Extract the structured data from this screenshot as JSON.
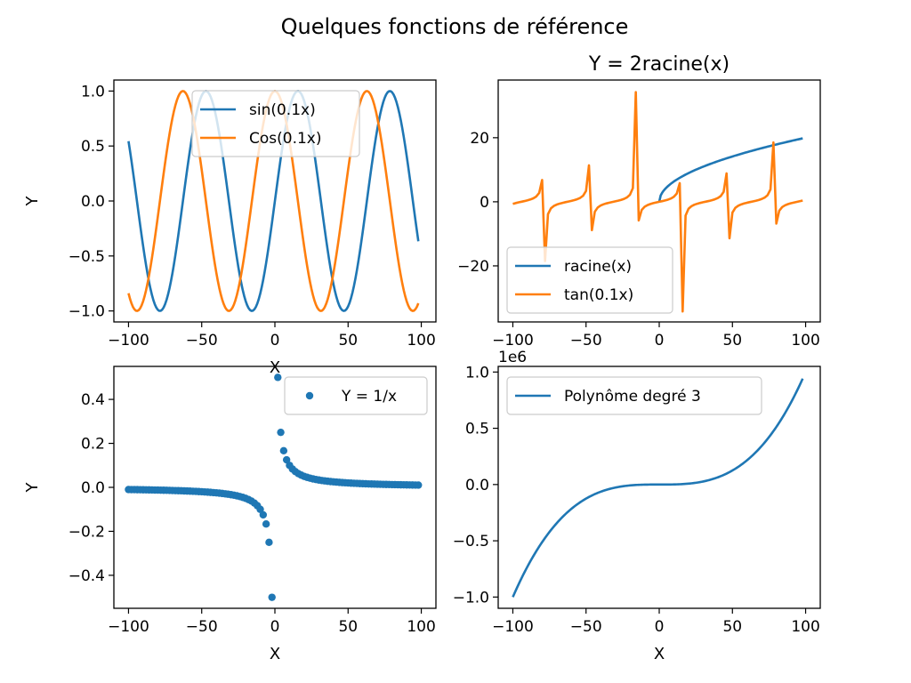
{
  "figure": {
    "title": "Quelques fonctions de référence"
  },
  "colors": {
    "blue": "#1f77b4",
    "orange": "#ff7f0e"
  },
  "chart_data": [
    {
      "type": "line",
      "title": "",
      "xlabel": "X",
      "ylabel": "Y",
      "xlim": [
        -110,
        110
      ],
      "ylim": [
        -1.1,
        1.1
      ],
      "xticks": [
        -100,
        -50,
        0,
        50,
        100
      ],
      "xtick_labels": [
        "−100",
        "−50",
        "0",
        "50",
        "100"
      ],
      "yticks": [
        -1.0,
        -0.5,
        0.0,
        0.5,
        1.0
      ],
      "ytick_labels": [
        "−1.0",
        "−0.5",
        "0.0",
        "0.5",
        "1.0"
      ],
      "grid": false,
      "legend": "top-center",
      "x_range": [
        -100,
        98
      ],
      "series": [
        {
          "name": "sin(0.1x)",
          "function": "sin(0.1x)",
          "color": "#1f77b4"
        },
        {
          "name": "Cos(0.1x)",
          "function": "cos(0.1x)",
          "color": "#ff7f0e"
        }
      ]
    },
    {
      "type": "line",
      "title": "Y = 2racine(x)",
      "xlabel": "",
      "ylabel": "",
      "xlim": [
        -110,
        110
      ],
      "ylim": [
        -37.5,
        38
      ],
      "xticks": [
        -100,
        -50,
        0,
        50,
        100
      ],
      "xtick_labels": [
        "−100",
        "−50",
        "0",
        "50",
        "100"
      ],
      "yticks": [
        -20,
        0,
        20
      ],
      "ytick_labels": [
        "−20",
        "0",
        "20"
      ],
      "grid": false,
      "legend": "lower-left",
      "series": [
        {
          "name": "racine(x)",
          "function": "2*sqrt(x)",
          "x_range": [
            0,
            98
          ],
          "color": "#1f77b4"
        },
        {
          "name": "tan(0.1x)",
          "function": "tan(0.1x)",
          "x_range": [
            -100,
            98
          ],
          "step": 2,
          "color": "#ff7f0e"
        }
      ]
    },
    {
      "type": "scatter",
      "title": "",
      "xlabel": "X",
      "ylabel": "Y",
      "xlim": [
        -110,
        110
      ],
      "ylim": [
        -0.55,
        0.55
      ],
      "xticks": [
        -100,
        -50,
        0,
        50,
        100
      ],
      "xtick_labels": [
        "−100",
        "−50",
        "0",
        "50",
        "100"
      ],
      "yticks": [
        -0.4,
        -0.2,
        0.0,
        0.2,
        0.4
      ],
      "ytick_labels": [
        "−0.4",
        "−0.2",
        "0.0",
        "0.2",
        "0.4"
      ],
      "grid": false,
      "legend": "top-right",
      "series": [
        {
          "name": "Y = 1/x",
          "function": "1/x",
          "x_range": [
            -100,
            98
          ],
          "step": 2,
          "exclude": [
            0
          ],
          "color": "#1f77b4"
        }
      ]
    },
    {
      "type": "line",
      "title": "",
      "xlabel": "X",
      "ylabel": "",
      "offset_label": "1e6",
      "xlim": [
        -110,
        110
      ],
      "ylim": [
        -1.1,
        1.05
      ],
      "xticks": [
        -100,
        -50,
        0,
        50,
        100
      ],
      "xtick_labels": [
        "−100",
        "−50",
        "0",
        "50",
        "100"
      ],
      "yticks": [
        -1.0,
        -0.5,
        0.0,
        0.5,
        1.0
      ],
      "ytick_labels": [
        "−1.0",
        "−0.5",
        "0.0",
        "0.5",
        "1.0"
      ],
      "grid": false,
      "legend": "top-left",
      "series": [
        {
          "name": "Polynôme degré 3",
          "function": "x^3",
          "x_range": [
            -100,
            98
          ],
          "color": "#1f77b4"
        }
      ]
    }
  ]
}
